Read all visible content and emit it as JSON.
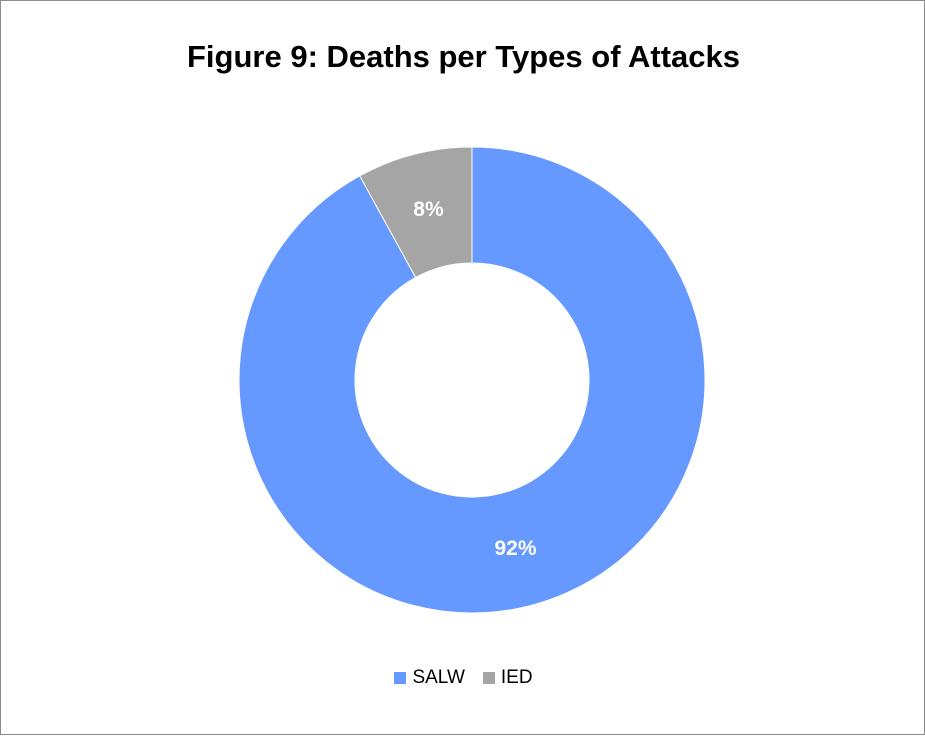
{
  "chart_data": {
    "type": "pie",
    "variant": "donut",
    "title": "Figure 9: Deaths per Types of Attacks",
    "slices": [
      {
        "name": "SALW",
        "value": 92,
        "label": "92%",
        "color": "#6699ff"
      },
      {
        "name": "IED",
        "value": 8,
        "label": "8%",
        "color": "#a5a5a5"
      }
    ],
    "legend": {
      "placement": "bottom",
      "items": [
        {
          "name": "SALW",
          "color": "#6699ff"
        },
        {
          "name": "IED",
          "color": "#a5a5a5"
        }
      ]
    },
    "start_angle_deg": 0,
    "direction": "clockwise"
  }
}
